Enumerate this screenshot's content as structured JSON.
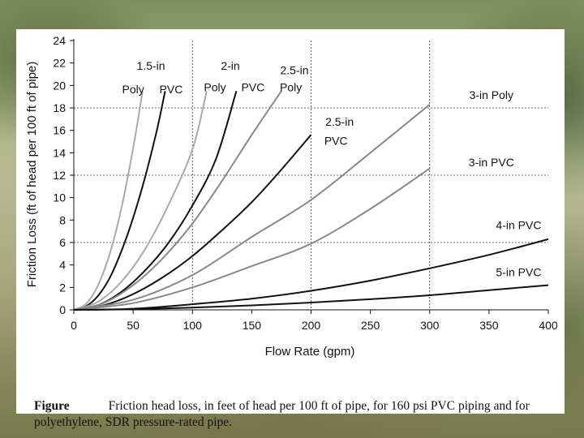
{
  "chart_data": {
    "type": "line",
    "xlabel": "Flow Rate (gpm)",
    "ylabel": "Friction Loss (ft of head per 100 ft of pipe)",
    "xlim": [
      0,
      400
    ],
    "ylim": [
      0,
      24
    ],
    "x_ticks": [
      0,
      50,
      100,
      150,
      200,
      250,
      300,
      350,
      400
    ],
    "y_ticks": [
      0,
      2,
      4,
      6,
      8,
      10,
      12,
      14,
      16,
      18,
      20,
      22,
      24
    ],
    "grid": {
      "vertical_dashed_at": [
        100,
        200,
        300
      ],
      "horizontal_dashed_at": [
        6,
        12,
        18
      ]
    },
    "series": [
      {
        "name": "1.5-in Poly",
        "color": "#aaaaaa",
        "x": [
          0,
          10,
          20,
          30,
          40,
          50,
          58
        ],
        "y": [
          0,
          0.5,
          2.1,
          4.9,
          9.0,
          14.4,
          19.5
        ]
      },
      {
        "name": "1.5-in PVC",
        "color": "#111111",
        "x": [
          0,
          10,
          20,
          30,
          40,
          50,
          60,
          70,
          77
        ],
        "y": [
          0,
          0.3,
          1.2,
          2.8,
          5.2,
          8.2,
          11.8,
          16.0,
          19.5
        ]
      },
      {
        "name": "2-in Poly",
        "color": "#aaaaaa",
        "x": [
          0,
          20,
          40,
          60,
          80,
          100,
          112
        ],
        "y": [
          0,
          0.7,
          2.5,
          5.4,
          9.4,
          14.3,
          19.5
        ]
      },
      {
        "name": "2-in PVC",
        "color": "#111111",
        "x": [
          0,
          20,
          40,
          60,
          80,
          100,
          120,
          137
        ],
        "y": [
          0,
          0.4,
          1.6,
          3.5,
          6.0,
          9.3,
          13.5,
          19.5
        ]
      },
      {
        "name": "2.5-in Poly",
        "color": "#888888",
        "x": [
          0,
          25,
          50,
          75,
          100,
          125,
          150,
          175
        ],
        "y": [
          0,
          0.6,
          2.2,
          4.6,
          7.7,
          11.5,
          15.6,
          19.5
        ]
      },
      {
        "name": "2.5-in PVC",
        "color": "#111111",
        "x": [
          0,
          25,
          50,
          75,
          100,
          125,
          150,
          175,
          200
        ],
        "y": [
          0,
          0.4,
          1.4,
          2.9,
          4.8,
          7.1,
          9.6,
          12.5,
          15.6
        ]
      },
      {
        "name": "3-in Poly",
        "color": "#888888",
        "x": [
          0,
          50,
          100,
          150,
          200,
          250,
          300
        ],
        "y": [
          0,
          0.9,
          3.1,
          6.5,
          9.8,
          14.0,
          18.3
        ]
      },
      {
        "name": "3-in PVC",
        "color": "#888888",
        "x": [
          0,
          50,
          100,
          150,
          200,
          250,
          300
        ],
        "y": [
          0,
          0.6,
          2.0,
          3.9,
          5.9,
          9.0,
          12.6
        ]
      },
      {
        "name": "4-in PVC",
        "color": "#111111",
        "x": [
          0,
          50,
          100,
          150,
          200,
          250,
          300,
          350,
          400
        ],
        "y": [
          0,
          0.1,
          0.5,
          1.0,
          1.7,
          2.6,
          3.7,
          4.9,
          6.3
        ]
      },
      {
        "name": "5-in PVC",
        "color": "#111111",
        "x": [
          0,
          50,
          100,
          150,
          200,
          250,
          300,
          350,
          400
        ],
        "y": [
          0,
          0.05,
          0.2,
          0.4,
          0.65,
          0.95,
          1.3,
          1.75,
          2.2
        ]
      }
    ],
    "annotations": [
      {
        "text": "1.5-in",
        "x": 65,
        "y": 21.4
      },
      {
        "text": "Poly",
        "x": 50,
        "y": 19.3
      },
      {
        "text": "PVC",
        "x": 82,
        "y": 19.3
      },
      {
        "text": "2-in",
        "x": 132,
        "y": 21.4
      },
      {
        "text": "Poly",
        "x": 119,
        "y": 19.5
      },
      {
        "text": "PVC",
        "x": 151,
        "y": 19.5
      },
      {
        "text": "2.5-in",
        "x": 186,
        "y": 21.0
      },
      {
        "text": "Poly",
        "x": 183,
        "y": 19.5
      },
      {
        "text": "2.5-in",
        "x": 224,
        "y": 16.4
      },
      {
        "text": "PVC",
        "x": 221,
        "y": 14.7
      },
      {
        "text": "3-in Poly",
        "x": 352,
        "y": 18.8
      },
      {
        "text": "3-in PVC",
        "x": 352,
        "y": 12.8
      },
      {
        "text": "4-in PVC",
        "x": 375,
        "y": 7.2
      },
      {
        "text": "5-in PVC",
        "x": 375,
        "y": 3.0
      }
    ]
  },
  "caption": {
    "label": "Figure",
    "text": "Friction head loss, in feet of head per 100 ft of pipe, for 160 psi PVC piping and for polyethylene, SDR pressure-rated pipe."
  }
}
